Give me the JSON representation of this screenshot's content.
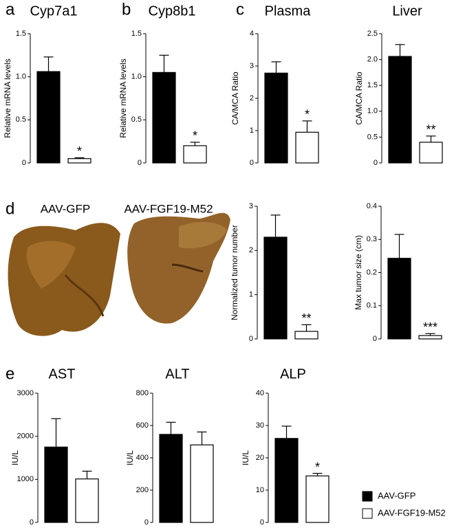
{
  "panel_labels": [
    "a",
    "b",
    "c",
    "d",
    "e"
  ],
  "photo_labels": [
    "AAV-GFP",
    "AAV-FGF19-M52"
  ],
  "legend": [
    {
      "label": "AAV-GFP",
      "color": "#000000"
    },
    {
      "label": "AAV-FGF19-M52",
      "color": "#ffffff"
    }
  ],
  "chart_data": [
    {
      "type": "bar",
      "title": "Cyp7a1",
      "y_label": "Relative mRNA levels",
      "values": [
        1.06,
        0.05
      ],
      "errors": [
        0.17,
        0.01
      ],
      "colors": [
        "#000000",
        "#ffffff"
      ],
      "annotation": "*",
      "ylim": [
        0,
        1.5
      ],
      "yticks": [
        0,
        0.5,
        {
          "value": 1,
          "label": "1.0"
        },
        1.5
      ]
    },
    {
      "type": "bar",
      "title": "Cyp8b1",
      "y_label": "Relative mRNA levels",
      "values": [
        1.05,
        0.2
      ],
      "errors": [
        0.2,
        0.04
      ],
      "colors": [
        "#000000",
        "#ffffff"
      ],
      "annotation": "*",
      "ylim": [
        0,
        1.5
      ],
      "yticks": [
        0,
        0.5,
        {
          "value": 1,
          "label": "1.0"
        },
        1.5
      ]
    },
    {
      "type": "bar",
      "title": "Plasma",
      "y_label": "CA/MCA Ratio",
      "values": [
        2.78,
        0.95
      ],
      "errors": [
        0.35,
        0.35
      ],
      "colors": [
        "#000000",
        "#ffffff"
      ],
      "annotation": "*",
      "ylim": [
        0,
        4
      ],
      "yticks": [
        0,
        1,
        2,
        3,
        4
      ]
    },
    {
      "type": "bar",
      "title": "Liver",
      "y_label": "CA/MCA Ratio",
      "values": [
        2.06,
        0.4
      ],
      "errors": [
        0.23,
        0.12
      ],
      "colors": [
        "#000000",
        "#ffffff"
      ],
      "annotation": "**",
      "ylim": [
        0,
        2.5
      ],
      "yticks": [
        0,
        0.5,
        {
          "value": 1,
          "label": "1.0"
        },
        1.5,
        {
          "value": 2,
          "label": "2.0"
        },
        2.5
      ]
    },
    {
      "type": "bar",
      "y_label": "Normalized tumor number",
      "values": [
        2.3,
        0.17
      ],
      "errors": [
        0.5,
        0.15
      ],
      "colors": [
        "#000000",
        "#ffffff"
      ],
      "annotation": "**",
      "ylim": [
        0,
        3
      ],
      "yticks": [
        0,
        1,
        2,
        3
      ]
    },
    {
      "type": "bar",
      "y_label": "Max tumor size (cm)",
      "values": [
        0.243,
        0.01
      ],
      "errors": [
        0.072,
        0.006
      ],
      "colors": [
        "#000000",
        "#ffffff"
      ],
      "annotation": "***",
      "ylim": [
        0,
        0.4
      ],
      "yticks": [
        0,
        0.1,
        0.2,
        0.3,
        0.4
      ]
    },
    {
      "type": "bar",
      "title": "AST",
      "y_label": "IU/L",
      "values": [
        1750,
        1010
      ],
      "errors": [
        660,
        180
      ],
      "colors": [
        "#000000",
        "#ffffff"
      ],
      "ylim": [
        0,
        3000
      ],
      "yticks": [
        0,
        1000,
        2000,
        3000
      ]
    },
    {
      "type": "bar",
      "title": "ALT",
      "y_label": "IU/L",
      "values": [
        545,
        480
      ],
      "errors": [
        75,
        80
      ],
      "colors": [
        "#000000",
        "#ffffff"
      ],
      "ylim": [
        0,
        800
      ],
      "yticks": [
        0,
        200,
        400,
        600,
        800
      ]
    },
    {
      "type": "bar",
      "title": "ALP",
      "y_label": "IU/L",
      "values": [
        26,
        14.4
      ],
      "errors": [
        3.8,
        0.8
      ],
      "colors": [
        "#000000",
        "#ffffff"
      ],
      "annotation": "*",
      "ylim": [
        0,
        40
      ],
      "yticks": [
        0,
        10,
        20,
        30,
        40
      ]
    }
  ]
}
